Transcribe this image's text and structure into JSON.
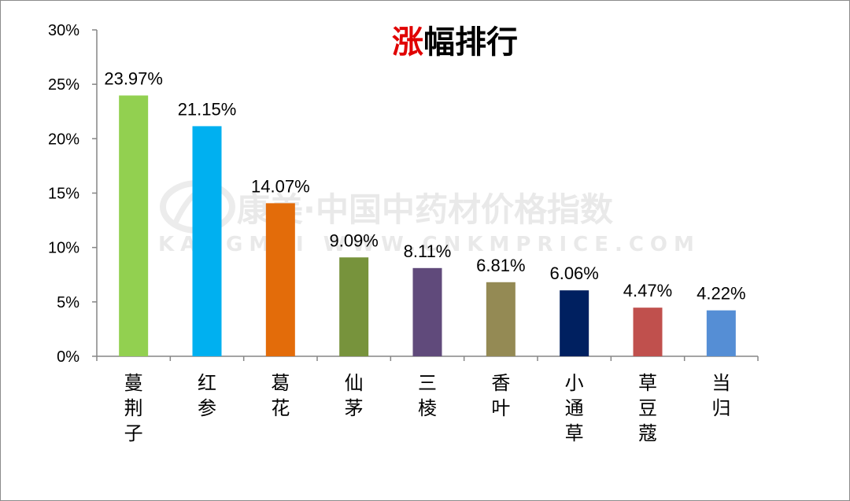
{
  "chart_data": {
    "type": "bar",
    "title_highlight": "涨",
    "title_rest": "幅排行",
    "categories": [
      "蔓荆子",
      "红参",
      "葛花",
      "仙茅",
      "三棱",
      "香叶",
      "小通草",
      "草豆蔻",
      "当归"
    ],
    "values": [
      23.97,
      21.15,
      14.07,
      9.09,
      8.11,
      6.81,
      6.06,
      4.47,
      4.22
    ],
    "data_labels": [
      "23.97%",
      "21.15%",
      "14.07%",
      "9.09%",
      "8.11%",
      "6.81%",
      "6.06%",
      "4.47%",
      "4.22%"
    ],
    "colors": [
      "#92d050",
      "#00b0f0",
      "#e36c0a",
      "#77933c",
      "#604a7b",
      "#948a54",
      "#002060",
      "#c0504d",
      "#558ed5"
    ],
    "ylim": [
      0,
      30
    ],
    "yticks": [
      0,
      5,
      10,
      15,
      20,
      25,
      30
    ],
    "ytick_labels": [
      "0%",
      "5%",
      "10%",
      "15%",
      "20%",
      "25%",
      "30%"
    ],
    "grid": false,
    "legend": "none",
    "title_colors": {
      "highlight": "#e00000",
      "rest": "#000000"
    }
  },
  "watermark": {
    "line1": "康美·中国中药材价格指数",
    "line2": "KANGMEI WWW.CNKMPRICE.COM"
  }
}
